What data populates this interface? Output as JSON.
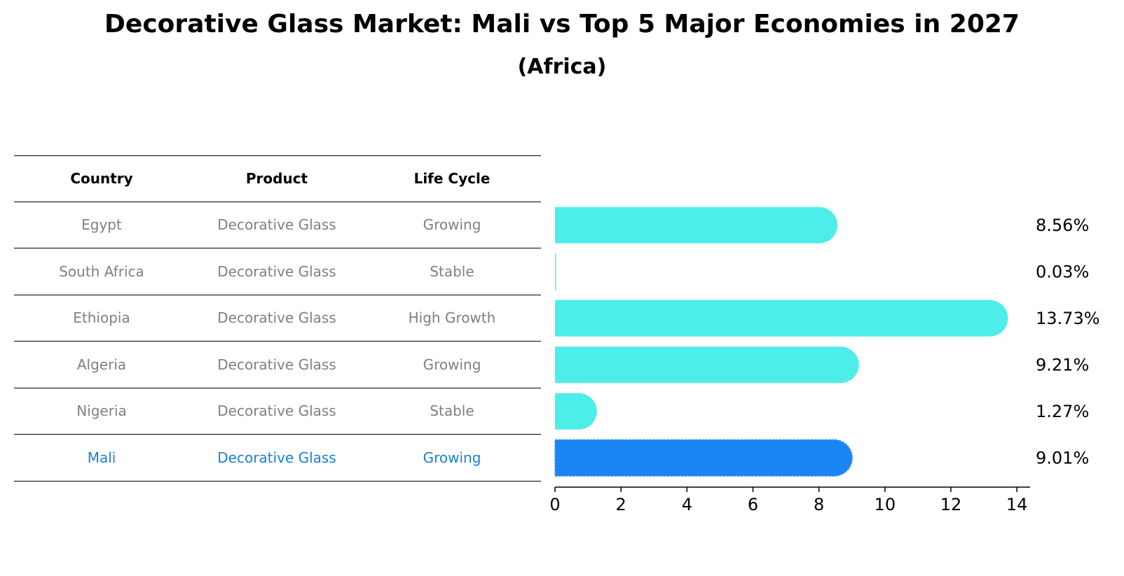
{
  "title": "Decorative Glass Market: Mali vs Top 5 Major Economies in 2027",
  "subtitle": "(Africa)",
  "table": {
    "headers": [
      "Country",
      "Product",
      "Life Cycle"
    ],
    "rows": [
      [
        "Egypt",
        "Decorative Glass",
        "Growing"
      ],
      [
        "South Africa",
        "Decorative Glass",
        "Stable"
      ],
      [
        "Ethiopia",
        "Decorative Glass",
        "High Growth"
      ],
      [
        "Algeria",
        "Decorative Glass",
        "Growing"
      ],
      [
        "Nigeria",
        "Decorative Glass",
        "Stable"
      ],
      [
        "Mali",
        "Decorative Glass",
        "Growing"
      ]
    ]
  },
  "chart_data": {
    "type": "bar",
    "orientation": "horizontal",
    "categories": [
      "Egypt",
      "South Africa",
      "Ethiopia",
      "Algeria",
      "Nigeria",
      "Mali"
    ],
    "values": [
      8.56,
      0.03,
      13.73,
      9.21,
      1.27,
      9.01
    ],
    "value_labels": [
      "8.56%",
      "0.03%",
      "13.73%",
      "9.21%",
      "1.27%",
      "9.01%"
    ],
    "highlight": "Mali",
    "xlim": [
      0,
      14.4
    ],
    "xticks": [
      0,
      2,
      4,
      6,
      8,
      10,
      12,
      14
    ],
    "colors": {
      "default": "#4deeea",
      "highlight": "#1a85f3"
    }
  }
}
